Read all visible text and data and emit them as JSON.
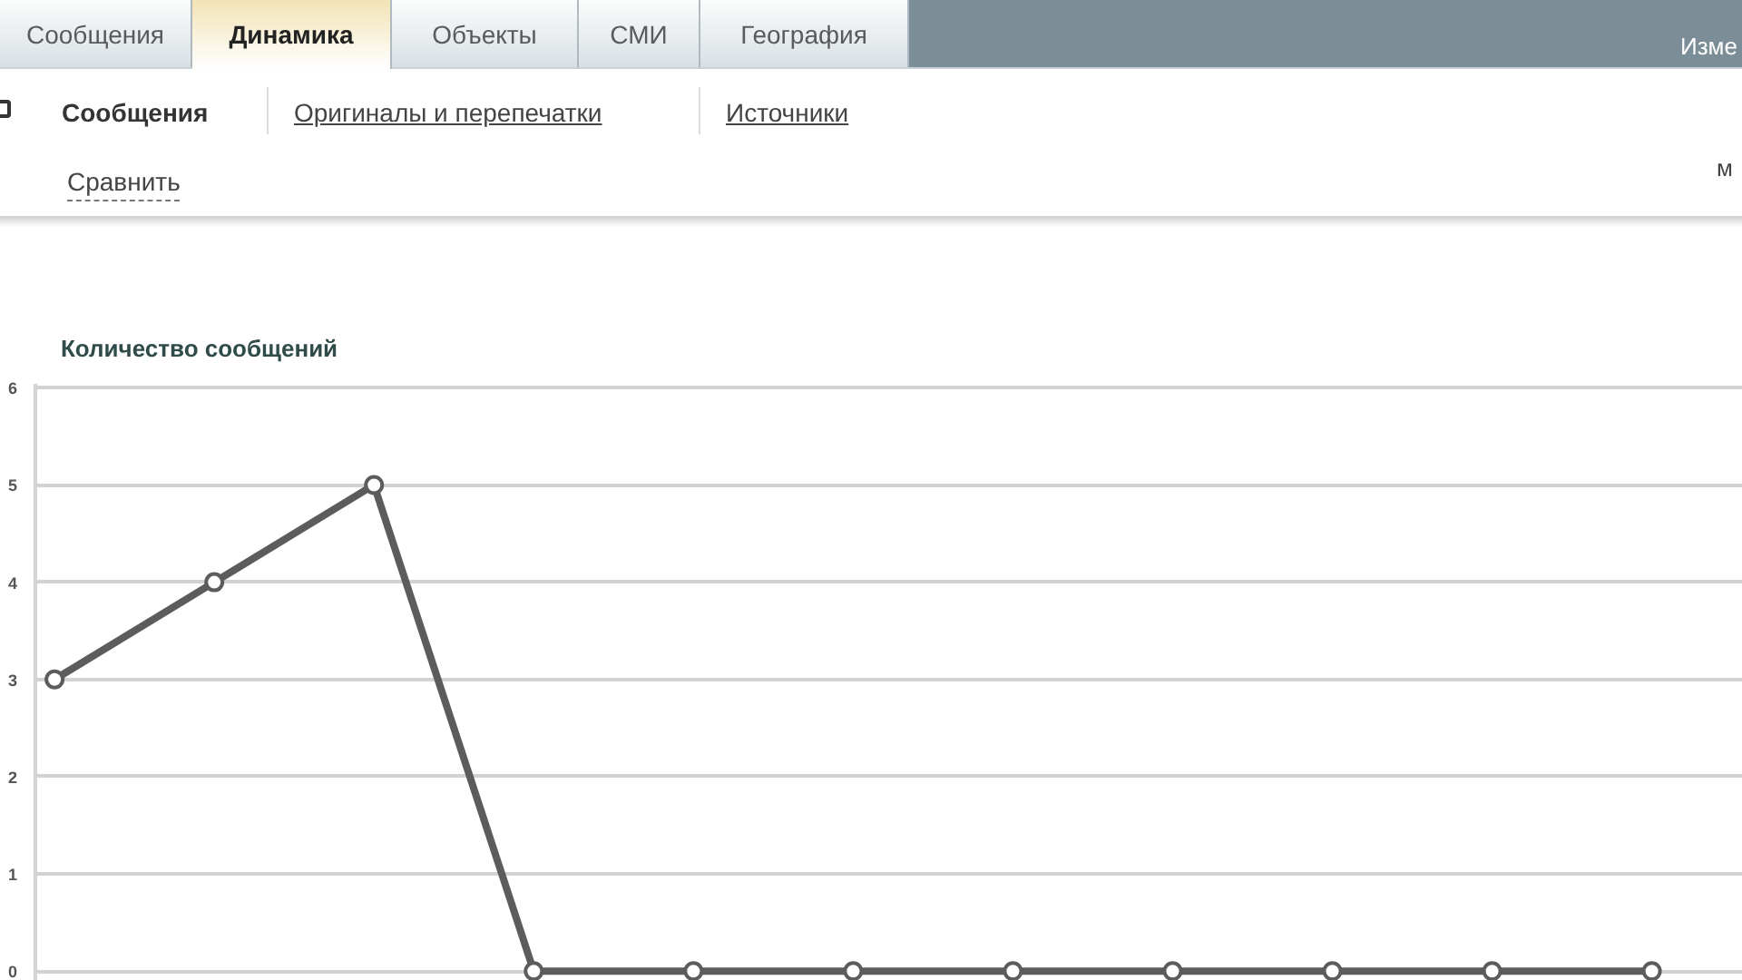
{
  "chart_data": {
    "type": "line",
    "title": "Количество сообщений",
    "categories": [
      null,
      null,
      null,
      null,
      null,
      null,
      null,
      null,
      null,
      null,
      null
    ],
    "series": [
      {
        "color": "#5c5c5c",
        "values": [
          3,
          4,
          5,
          0,
          0,
          0,
          0,
          0,
          0,
          0,
          0
        ]
      }
    ],
    "ylim": [
      -0.1,
      6.04
    ],
    "yticks": [
      0,
      1,
      2,
      3,
      4,
      5,
      6
    ],
    "grid": "y",
    "marker": "circle",
    "line_style": "solid",
    "tick_labels": "y",
    "annotations": [
      "Сообщения",
      "Динамика",
      "Объекты",
      "СМИ",
      "География",
      "Изме",
      "Сообщения",
      "Оригиналы и перепечатки",
      "Источники",
      "Сравнить",
      "м"
    ]
  }
}
